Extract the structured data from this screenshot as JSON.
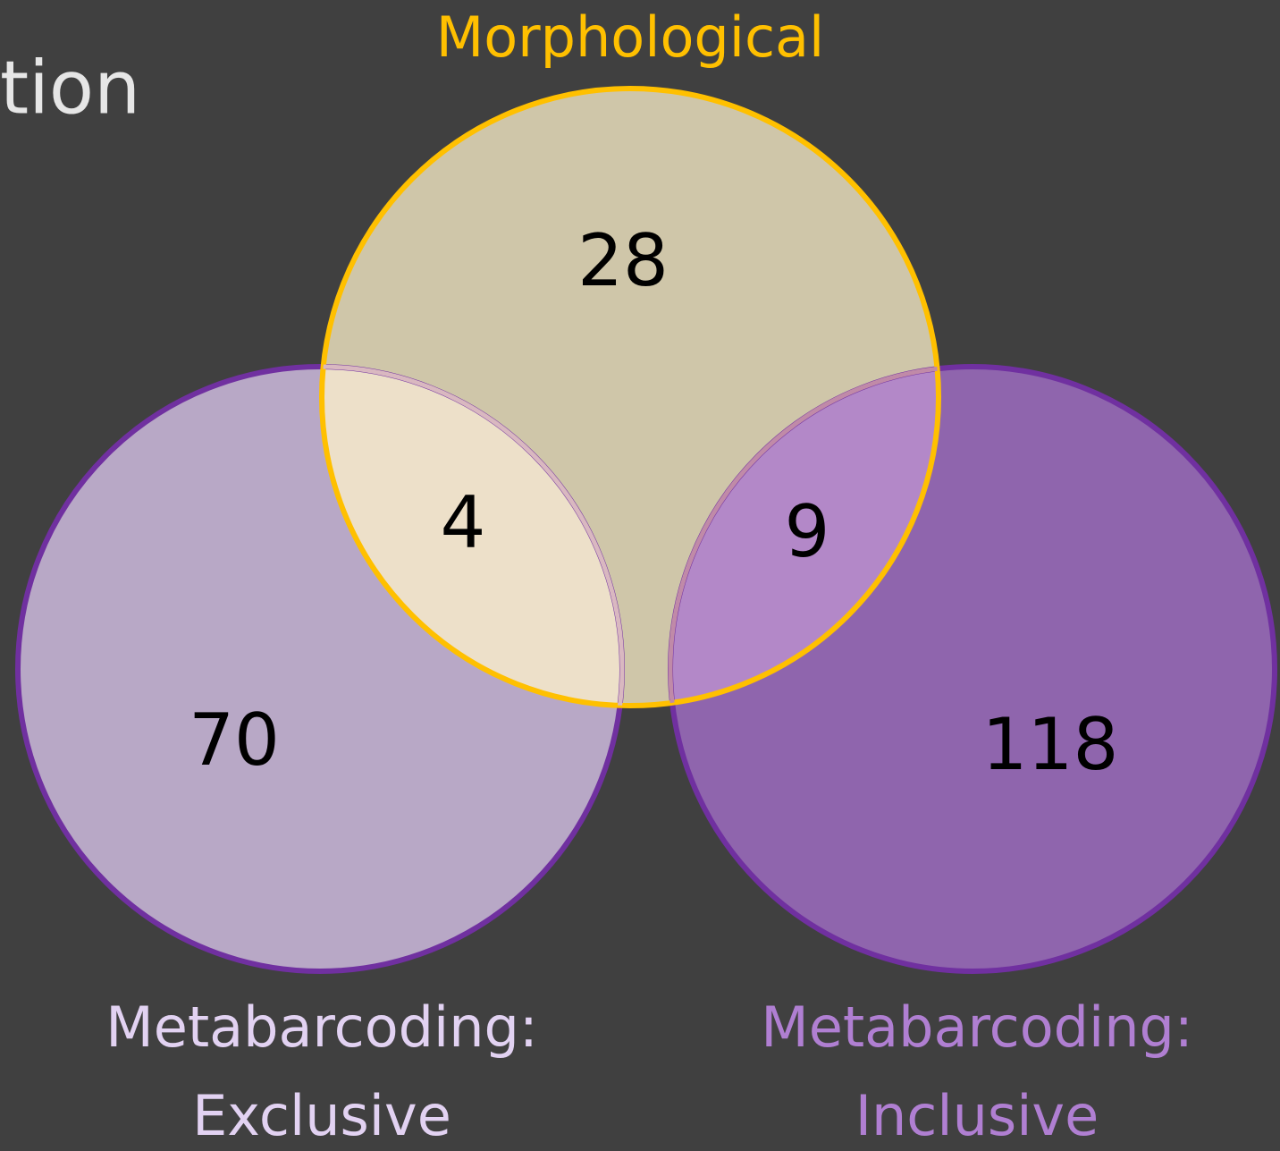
{
  "title_fragment": "tion",
  "sets": [
    {
      "label": [
        "Morphological"
      ]
    },
    {
      "label": [
        "Metabarcoding:",
        "Exclusive"
      ]
    },
    {
      "label": [
        "Metabarcoding:",
        "Inclusive"
      ]
    }
  ],
  "regions": {
    "morphological_only": "28",
    "morphological_exclusive": "4",
    "morphological_inclusive": "9",
    "exclusive_only": "70",
    "inclusive_only": "118"
  }
}
